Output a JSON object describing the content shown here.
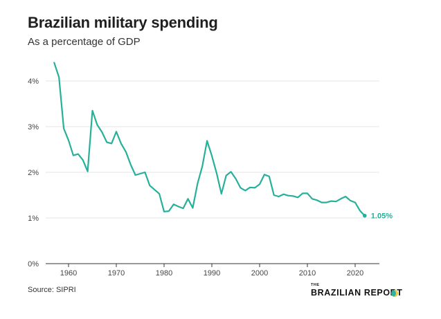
{
  "header": {
    "title": "Brazilian military spending",
    "subtitle": "As a percentage of GDP"
  },
  "footer": {
    "source": "Source: SIPRI",
    "logo_small": "THE",
    "logo_main": "BRAZILIAN REPORT"
  },
  "colors": {
    "line": "#26b09a",
    "grid": "#e4e4e4",
    "axis": "#333333"
  },
  "chart_data": {
    "type": "line",
    "title": "Brazilian military spending",
    "subtitle": "As a percentage of GDP",
    "xlabel": "",
    "ylabel": "",
    "xlim": [
      1955,
      2025
    ],
    "ylim": [
      0,
      4.5
    ],
    "x_ticks": [
      1960,
      1970,
      1980,
      1990,
      2000,
      2010,
      2020
    ],
    "x_tick_labels": [
      "1960",
      "1970",
      "1980",
      "1990",
      "2000",
      "2010",
      "2020"
    ],
    "y_ticks": [
      0,
      1,
      2,
      3,
      4
    ],
    "y_tick_labels": [
      "0%",
      "1%",
      "2%",
      "3%",
      "4%"
    ],
    "grid": "horizontal",
    "end_label": "1.05%",
    "series": [
      {
        "x": [
          1957,
          1958,
          1959,
          1960,
          1961,
          1962,
          1963,
          1964,
          1965,
          1966,
          1967,
          1968,
          1969,
          1970,
          1971,
          1972,
          1973,
          1974,
          1975,
          1976,
          1977,
          1978,
          1979,
          1980,
          1981,
          1982,
          1983,
          1984,
          1985,
          1986,
          1987,
          1988,
          1989,
          1990,
          1991,
          1992,
          1993,
          1994,
          1995,
          1996,
          1997,
          1998,
          1999,
          2000,
          2001,
          2002,
          2003,
          2004,
          2005,
          2006,
          2007,
          2008,
          2009,
          2010,
          2011,
          2012,
          2013,
          2014,
          2015,
          2016,
          2017,
          2018,
          2019,
          2020,
          2021,
          2022
        ],
        "values": [
          4.4,
          4.08,
          2.96,
          2.7,
          2.37,
          2.4,
          2.27,
          2.02,
          3.35,
          3.04,
          2.88,
          2.66,
          2.63,
          2.89,
          2.63,
          2.45,
          2.17,
          1.94,
          1.97,
          2.0,
          1.71,
          1.62,
          1.53,
          1.14,
          1.15,
          1.3,
          1.25,
          1.21,
          1.42,
          1.22,
          1.75,
          2.13,
          2.69,
          2.36,
          1.98,
          1.53,
          1.93,
          2.01,
          1.86,
          1.66,
          1.6,
          1.67,
          1.66,
          1.74,
          1.95,
          1.91,
          1.5,
          1.47,
          1.52,
          1.49,
          1.48,
          1.45,
          1.54,
          1.54,
          1.42,
          1.39,
          1.34,
          1.34,
          1.37,
          1.36,
          1.42,
          1.47,
          1.38,
          1.34,
          1.16,
          1.05
        ]
      }
    ]
  }
}
